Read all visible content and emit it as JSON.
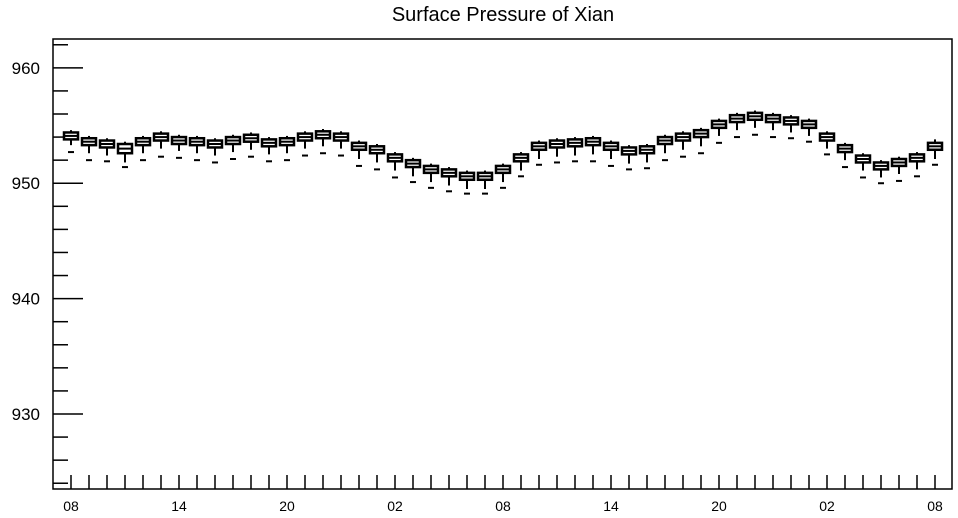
{
  "chart_data": {
    "type": "box",
    "title": "Surface Pressure of Xian",
    "xlabel": "",
    "ylabel": "",
    "ylim": [
      923.5,
      962.5
    ],
    "yticks": [
      960,
      950,
      940,
      930
    ],
    "x_tick_labels": [
      "08",
      "14",
      "20",
      "02",
      "08",
      "14",
      "20",
      "02",
      "08"
    ],
    "grid": false,
    "series": [
      {
        "median": [
          954.1,
          953.6,
          953.4,
          953.0,
          953.6,
          954.0,
          953.7,
          953.6,
          953.4,
          953.7,
          953.9,
          953.5,
          953.6,
          954.0,
          954.2,
          954.0,
          953.2,
          952.9,
          952.2,
          951.7,
          951.2,
          950.9,
          950.6,
          950.6,
          951.2,
          952.2,
          953.2,
          953.4,
          953.5,
          953.6,
          953.2,
          952.8,
          952.9,
          953.7,
          954.0,
          954.3,
          955.1,
          955.6,
          955.8,
          955.6,
          955.4,
          955.1,
          954.0,
          953.0,
          952.1,
          951.5,
          951.8,
          952.2,
          953.2
        ],
        "q1": [
          953.8,
          953.3,
          953.1,
          952.6,
          953.3,
          953.7,
          953.4,
          953.3,
          953.1,
          953.4,
          953.6,
          953.2,
          953.3,
          953.7,
          953.9,
          953.7,
          952.9,
          952.6,
          951.9,
          951.4,
          950.9,
          950.6,
          950.3,
          950.3,
          950.9,
          951.9,
          952.9,
          953.1,
          953.2,
          953.3,
          952.9,
          952.5,
          952.6,
          953.4,
          953.7,
          954.0,
          954.8,
          955.3,
          955.5,
          955.3,
          955.1,
          954.8,
          953.7,
          952.7,
          951.8,
          951.2,
          951.5,
          951.9,
          952.9
        ],
        "q3": [
          954.4,
          953.9,
          953.7,
          953.4,
          953.9,
          954.3,
          954.0,
          953.9,
          953.7,
          954.0,
          954.2,
          953.8,
          953.9,
          954.3,
          954.5,
          954.3,
          953.5,
          953.2,
          952.5,
          952.0,
          951.5,
          951.2,
          950.9,
          950.9,
          951.5,
          952.5,
          953.5,
          953.7,
          953.8,
          953.9,
          953.5,
          953.1,
          953.2,
          954.0,
          954.3,
          954.6,
          955.4,
          955.9,
          956.1,
          955.9,
          955.7,
          955.4,
          954.3,
          953.3,
          952.4,
          951.8,
          952.1,
          952.5,
          953.5
        ],
        "lower_whisker": [
          953.3,
          952.6,
          952.4,
          951.8,
          952.6,
          953.0,
          952.8,
          952.6,
          952.4,
          952.7,
          952.9,
          952.5,
          952.6,
          953.0,
          953.2,
          953.0,
          952.1,
          951.8,
          951.1,
          950.6,
          950.1,
          949.8,
          949.5,
          949.5,
          950.1,
          951.1,
          952.1,
          952.3,
          952.4,
          952.5,
          952.1,
          951.7,
          951.8,
          952.6,
          952.9,
          953.2,
          954.1,
          954.6,
          954.8,
          954.6,
          954.4,
          954.1,
          953.0,
          952.0,
          951.1,
          950.5,
          950.8,
          951.2,
          952.1
        ],
        "upper_whisker": [
          954.6,
          954.1,
          953.9,
          953.6,
          954.1,
          954.5,
          954.2,
          954.1,
          953.9,
          954.2,
          954.4,
          954.0,
          954.1,
          954.5,
          954.7,
          954.5,
          953.7,
          953.4,
          952.7,
          952.2,
          951.7,
          951.4,
          951.1,
          951.1,
          951.7,
          952.7,
          953.7,
          953.9,
          954.0,
          954.1,
          953.7,
          953.3,
          953.4,
          954.2,
          954.5,
          954.8,
          955.6,
          956.1,
          956.3,
          956.1,
          955.9,
          955.6,
          954.5,
          953.5,
          952.6,
          952.0,
          952.3,
          952.7,
          953.8
        ],
        "outlier": [
          952.7,
          952.0,
          951.9,
          951.4,
          952.0,
          952.3,
          952.2,
          952.0,
          951.8,
          952.1,
          952.3,
          951.9,
          952.0,
          952.4,
          952.6,
          952.4,
          951.5,
          951.2,
          950.5,
          950.1,
          949.6,
          949.3,
          949.1,
          949.1,
          949.6,
          950.6,
          951.6,
          951.8,
          951.9,
          951.9,
          951.5,
          951.2,
          951.3,
          952.0,
          952.3,
          952.6,
          953.5,
          954.0,
          954.2,
          954.0,
          953.9,
          953.6,
          952.5,
          951.4,
          950.5,
          950.0,
          950.2,
          950.6,
          951.6
        ]
      }
    ]
  }
}
